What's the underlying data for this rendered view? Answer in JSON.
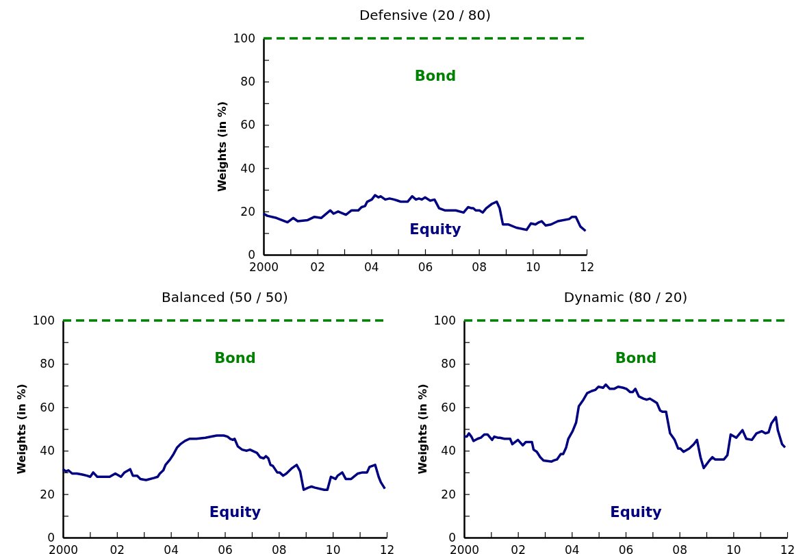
{
  "chart_data": [
    {
      "type": "line",
      "title": "Defensive (20 / 80)",
      "ylabel": "Weights (in %)",
      "xlim": [
        2000,
        2012
      ],
      "ylim": [
        0,
        100
      ],
      "xticks": [
        {
          "value": 2000,
          "label": "2000"
        },
        {
          "value": 2001,
          "label": null
        },
        {
          "value": 2002,
          "label": "02"
        },
        {
          "value": 2003,
          "label": null
        },
        {
          "value": 2004,
          "label": "04"
        },
        {
          "value": 2005,
          "label": null
        },
        {
          "value": 2006,
          "label": "06"
        },
        {
          "value": 2007,
          "label": null
        },
        {
          "value": 2008,
          "label": "08"
        },
        {
          "value": 2009,
          "label": null
        },
        {
          "value": 2010,
          "label": "10"
        },
        {
          "value": 2011,
          "label": null
        },
        {
          "value": 2012,
          "label": "12"
        }
      ],
      "yticks": [
        0,
        {
          "value": 10,
          "label": null
        },
        20,
        {
          "value": 30,
          "label": null
        },
        40,
        {
          "value": 50,
          "label": null
        },
        60,
        {
          "value": 70,
          "label": null
        },
        80,
        {
          "value": 90,
          "label": null
        },
        100
      ],
      "grid": false,
      "marker": "none",
      "series": [
        {
          "name": "Bond",
          "color": "#008000",
          "line_style": "dashed",
          "x": [
            2000,
            2012
          ],
          "values": [
            100,
            100
          ]
        },
        {
          "name": "Equity",
          "color": "#000080",
          "line_style": "solid",
          "x": [
            2000.0,
            2000.14,
            2000.48,
            2000.89,
            2001.1,
            2001.27,
            2001.64,
            2001.89,
            2002.14,
            2002.48,
            2002.6,
            2002.77,
            2003.06,
            2003.27,
            2003.52,
            2003.64,
            2003.77,
            2003.85,
            2004.02,
            2004.14,
            2004.27,
            2004.35,
            2004.52,
            2004.68,
            2004.85,
            2004.98,
            2005.1,
            2005.35,
            2005.52,
            2005.66,
            2005.77,
            2005.88,
            2006.0,
            2006.19,
            2006.35,
            2006.52,
            2006.73,
            2007.14,
            2007.43,
            2007.6,
            2007.73,
            2007.79,
            2007.88,
            2008.02,
            2008.14,
            2008.27,
            2008.48,
            2008.66,
            2008.77,
            2008.89,
            2009.1,
            2009.39,
            2009.77,
            2009.93,
            2010.1,
            2010.23,
            2010.33,
            2010.48,
            2010.68,
            2010.93,
            2011.35,
            2011.46,
            2011.6,
            2011.77,
            2011.96
          ],
          "values": [
            19,
            18,
            17,
            15,
            17,
            15.5,
            16,
            17.5,
            17,
            20.5,
            19,
            20,
            18.5,
            20.5,
            20.5,
            22,
            22.5,
            24.5,
            25.5,
            27.5,
            26.5,
            27,
            25.5,
            26,
            25.5,
            25,
            24.5,
            24.5,
            27,
            25.5,
            26,
            25.5,
            26.5,
            25,
            25.5,
            21.5,
            20.5,
            20.5,
            19.5,
            22,
            21.5,
            21.5,
            20.5,
            20.5,
            19.5,
            21.5,
            23.5,
            24.5,
            21.5,
            14,
            14,
            12.5,
            11.5,
            14.5,
            14,
            15,
            15.5,
            13.5,
            14,
            15.5,
            16.5,
            17.5,
            17.5,
            13,
            11
          ]
        }
      ]
    },
    {
      "type": "line",
      "title": "Balanced (50 / 50)",
      "ylabel": "Weights (in %)",
      "xlim": [
        2000,
        2012
      ],
      "ylim": [
        0,
        100
      ],
      "xticks": [
        {
          "value": 2000,
          "label": "2000"
        },
        {
          "value": 2001,
          "label": null
        },
        {
          "value": 2002,
          "label": "02"
        },
        {
          "value": 2003,
          "label": null
        },
        {
          "value": 2004,
          "label": "04"
        },
        {
          "value": 2005,
          "label": null
        },
        {
          "value": 2006,
          "label": "06"
        },
        {
          "value": 2007,
          "label": null
        },
        {
          "value": 2008,
          "label": "08"
        },
        {
          "value": 2009,
          "label": null
        },
        {
          "value": 2010,
          "label": "10"
        },
        {
          "value": 2011,
          "label": null
        },
        {
          "value": 2012,
          "label": "12"
        }
      ],
      "yticks": [
        0,
        {
          "value": 10,
          "label": null
        },
        20,
        {
          "value": 30,
          "label": null
        },
        40,
        {
          "value": 50,
          "label": null
        },
        60,
        {
          "value": 70,
          "label": null
        },
        80,
        {
          "value": 90,
          "label": null
        },
        100
      ],
      "grid": false,
      "marker": "none",
      "series": [
        {
          "name": "Bond",
          "color": "#008000",
          "line_style": "dashed",
          "x": [
            2000,
            2012
          ],
          "values": [
            100,
            100
          ]
        },
        {
          "name": "Equity",
          "color": "#000080",
          "line_style": "solid",
          "x": [
            2000.0,
            2000.11,
            2000.2,
            2000.34,
            2000.51,
            2000.72,
            2000.89,
            2001.01,
            2001.12,
            2001.27,
            2001.73,
            2001.94,
            2002.15,
            2002.28,
            2002.49,
            2002.59,
            2002.75,
            2002.87,
            2003.08,
            2003.38,
            2003.51,
            2003.59,
            2003.72,
            2003.8,
            2003.97,
            2004.1,
            2004.23,
            2004.35,
            2004.52,
            2004.69,
            2004.94,
            2005.28,
            2005.5,
            2005.7,
            2005.96,
            2006.1,
            2006.2,
            2006.3,
            2006.36,
            2006.48,
            2006.64,
            2006.81,
            2006.93,
            2007.19,
            2007.31,
            2007.44,
            2007.52,
            2007.61,
            2007.69,
            2007.78,
            2007.94,
            2008.03,
            2008.16,
            2008.28,
            2008.49,
            2008.66,
            2008.79,
            2008.92,
            2009.09,
            2009.21,
            2009.34,
            2009.68,
            2009.8,
            2009.93,
            2010.1,
            2010.18,
            2010.35,
            2010.48,
            2010.68,
            2010.93,
            2011.1,
            2011.27,
            2011.36,
            2011.57,
            2011.7,
            2011.78,
            2011.93
          ],
          "values": [
            31.5,
            30.5,
            31,
            29.5,
            29.5,
            29,
            28.5,
            28,
            30,
            28,
            28,
            29.5,
            28,
            30,
            31.5,
            28.5,
            28.5,
            27,
            26.5,
            27.5,
            28,
            29.5,
            31,
            33.5,
            36,
            38.5,
            41.5,
            43,
            44.5,
            45.5,
            45.5,
            46,
            46.5,
            47,
            47,
            46.5,
            45.5,
            45,
            45.5,
            42,
            40.5,
            40,
            40.5,
            39,
            37,
            36.5,
            37.5,
            36.5,
            33.5,
            33,
            30,
            30,
            28.5,
            29.5,
            32,
            33.5,
            30.5,
            22,
            23,
            23.5,
            23,
            22,
            22,
            28,
            27,
            28.5,
            30,
            27,
            27,
            29.5,
            30,
            30,
            32.5,
            33.5,
            28,
            25.5,
            22.5
          ]
        }
      ]
    },
    {
      "type": "line",
      "title": "Dynamic (80 / 20)",
      "ylabel": "Weights (in %)",
      "xlim": [
        2000,
        2012
      ],
      "ylim": [
        0,
        100
      ],
      "xticks": [
        {
          "value": 2000,
          "label": "2000"
        },
        {
          "value": 2001,
          "label": null
        },
        {
          "value": 2002,
          "label": "02"
        },
        {
          "value": 2003,
          "label": null
        },
        {
          "value": 2004,
          "label": "04"
        },
        {
          "value": 2005,
          "label": null
        },
        {
          "value": 2006,
          "label": "06"
        },
        {
          "value": 2007,
          "label": null
        },
        {
          "value": 2008,
          "label": "08"
        },
        {
          "value": 2009,
          "label": null
        },
        {
          "value": 2010,
          "label": "10"
        },
        {
          "value": 2011,
          "label": null
        },
        {
          "value": 2012,
          "label": "12"
        }
      ],
      "yticks": [
        0,
        {
          "value": 10,
          "label": null
        },
        20,
        {
          "value": 30,
          "label": null
        },
        40,
        {
          "value": 50,
          "label": null
        },
        60,
        {
          "value": 70,
          "label": null
        },
        80,
        {
          "value": 90,
          "label": null
        },
        100
      ],
      "grid": false,
      "marker": "none",
      "series": [
        {
          "name": "Bond",
          "color": "#008000",
          "line_style": "dashed",
          "x": [
            2000,
            2012
          ],
          "values": [
            100,
            100
          ]
        },
        {
          "name": "Equity",
          "color": "#000080",
          "line_style": "solid",
          "x": [
            2000.0,
            2000.1,
            2000.18,
            2000.27,
            2000.35,
            2000.5,
            2000.62,
            2000.75,
            2000.87,
            2001.04,
            2001.12,
            2001.25,
            2001.33,
            2001.5,
            2001.71,
            2001.79,
            2002.0,
            2002.18,
            2002.29,
            2002.52,
            2002.58,
            2002.7,
            2002.83,
            2002.95,
            2003.24,
            2003.33,
            2003.45,
            2003.59,
            2003.68,
            2003.79,
            2003.87,
            2004.03,
            2004.16,
            2004.26,
            2004.43,
            2004.57,
            2004.74,
            2004.87,
            2004.99,
            2005.16,
            2005.26,
            2005.41,
            2005.57,
            2005.72,
            2005.91,
            2006.03,
            2006.17,
            2006.26,
            2006.36,
            2006.49,
            2006.66,
            2006.78,
            2006.9,
            2007.03,
            2007.16,
            2007.28,
            2007.36,
            2007.5,
            2007.65,
            2007.82,
            2007.95,
            2008.03,
            2008.15,
            2008.36,
            2008.53,
            2008.65,
            2008.78,
            2008.9,
            2009.11,
            2009.22,
            2009.32,
            2009.65,
            2009.78,
            2009.9,
            2010.11,
            2010.34,
            2010.48,
            2010.69,
            2010.86,
            2011.06,
            2011.19,
            2011.31,
            2011.41,
            2011.58,
            2011.65,
            2011.81,
            2011.92
          ],
          "values": [
            46.5,
            46.5,
            48,
            46.5,
            44.5,
            45.5,
            46,
            47.5,
            47.5,
            45,
            46.5,
            46,
            46,
            45.5,
            45.5,
            43,
            45,
            42.5,
            44,
            44,
            40.5,
            39.5,
            37,
            35.5,
            35,
            35.5,
            36,
            38.5,
            38.5,
            41.5,
            45.5,
            49,
            53,
            60.5,
            63.5,
            66.5,
            67.5,
            68,
            69.5,
            69,
            70.5,
            68.5,
            68.5,
            69.5,
            69,
            68.5,
            67,
            67,
            68.5,
            65,
            64,
            63.5,
            64,
            63,
            62,
            58.5,
            58,
            58,
            48,
            45,
            41,
            41,
            39.5,
            41,
            43,
            45,
            37,
            32,
            35.5,
            37,
            36,
            36,
            38,
            47.5,
            46,
            49.5,
            45.5,
            45,
            48,
            49,
            48,
            48.5,
            52.5,
            55.5,
            49.5,
            43,
            41.5
          ]
        }
      ]
    }
  ]
}
